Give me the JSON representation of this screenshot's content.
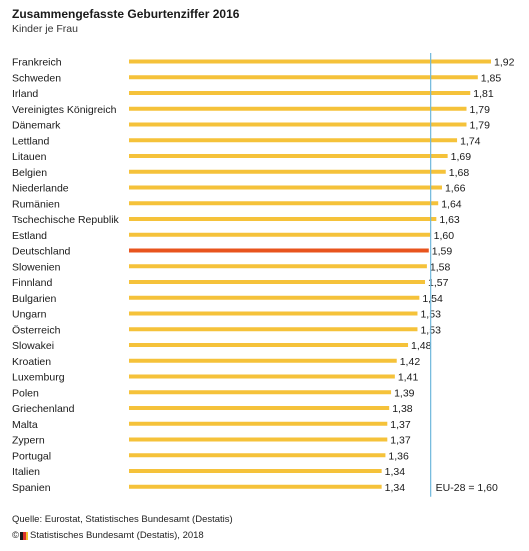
{
  "chart_data": {
    "type": "bar",
    "orientation": "horizontal",
    "title": "Zusammengefasste Geburtenziffer 2016",
    "subtitle": "Kinder je Frau",
    "categories": [
      "Frankreich",
      "Schweden",
      "Irland",
      "Vereinigtes Königreich",
      "Dänemark",
      "Lettland",
      "Litauen",
      "Belgien",
      "Niederlande",
      "Rumänien",
      "Tschechische Republik",
      "Estland",
      "Deutschland",
      "Slowenien",
      "Finnland",
      "Bulgarien",
      "Ungarn",
      "Österreich",
      "Slowakei",
      "Kroatien",
      "Luxemburg",
      "Polen",
      "Griechenland",
      "Malta",
      "Zypern",
      "Portugal",
      "Italien",
      "Spanien"
    ],
    "values": [
      1.92,
      1.85,
      1.81,
      1.79,
      1.79,
      1.74,
      1.69,
      1.68,
      1.66,
      1.64,
      1.63,
      1.6,
      1.59,
      1.58,
      1.57,
      1.54,
      1.53,
      1.53,
      1.48,
      1.42,
      1.41,
      1.39,
      1.38,
      1.37,
      1.37,
      1.36,
      1.34,
      1.34
    ],
    "value_labels": [
      "1,92",
      "1,85",
      "1,81",
      "1,79",
      "1,79",
      "1,74",
      "1,69",
      "1,68",
      "1,66",
      "1,64",
      "1,63",
      "1,60",
      "1,59",
      "1,58",
      "1,57",
      "1,54",
      "1,53",
      "1,53",
      "1,48",
      "1,42",
      "1,41",
      "1,39",
      "1,38",
      "1,37",
      "1,37",
      "1,36",
      "1,34",
      "1,34"
    ],
    "highlight_category": "Deutschland",
    "reference_line": {
      "value": 1.6,
      "label": "EU-28 = 1,60"
    },
    "xlim": [
      0,
      1.92
    ],
    "grid": false,
    "colors": {
      "bar": "#f5c23a",
      "highlight": "#e8541e",
      "reference": "#6fb8dc"
    }
  },
  "footer": {
    "source": "Quelle: Eurostat, Statistisches Bundesamt (Destatis)",
    "copyright_symbol": "©",
    "copyright_text": "Statistisches Bundesamt (Destatis), 2018"
  }
}
